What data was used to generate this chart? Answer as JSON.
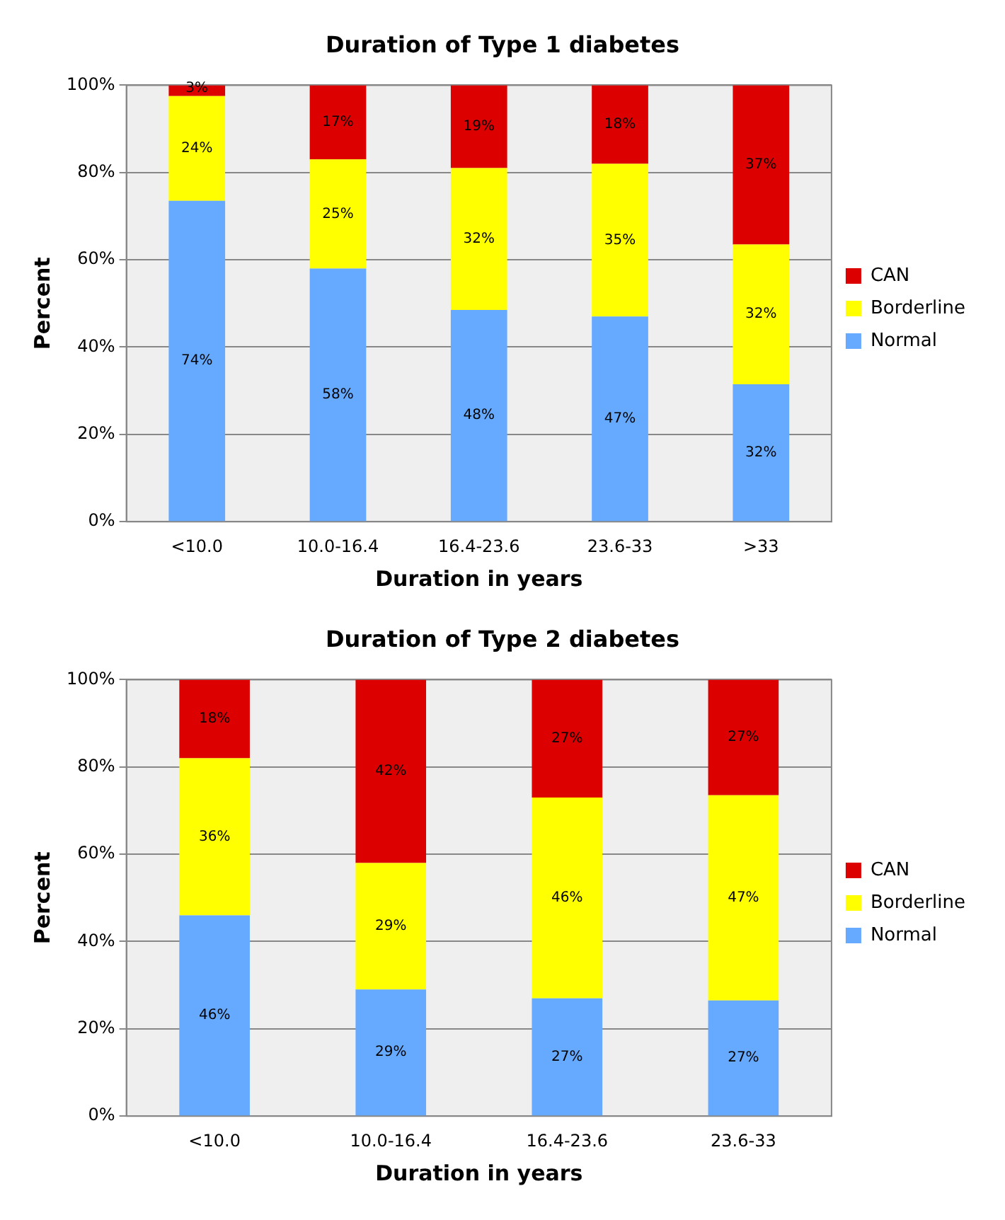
{
  "chart_data": [
    {
      "type": "bar",
      "title": "Duration of Type 1 diabetes",
      "xlabel": "Duration in years",
      "ylabel": "Percent",
      "stacked": true,
      "categories": [
        "<10.0",
        "10.0-16.4",
        "16.4-23.6",
        "23.6-33",
        ">33"
      ],
      "series": [
        {
          "name": "Normal",
          "color": "#66aaff",
          "values": [
            73.5,
            58,
            48.5,
            47,
            31.5
          ],
          "value_labels": [
            "74%",
            "58%",
            "48%",
            "47%",
            "32%"
          ]
        },
        {
          "name": "Borderline",
          "color": "#ffff00",
          "values": [
            24,
            25,
            32.5,
            35,
            32
          ],
          "value_labels": [
            "24%",
            "25%",
            "32%",
            "35%",
            "32%"
          ]
        },
        {
          "name": "CAN",
          "color": "#dd0000",
          "values": [
            2.5,
            17,
            19,
            18,
            36.5
          ],
          "value_labels": [
            "3%",
            "17%",
            "19%",
            "18%",
            "37%"
          ]
        }
      ],
      "ylim": [
        0,
        100
      ],
      "yticks": [
        {
          "value": 0,
          "label": "0%"
        },
        {
          "value": 20,
          "label": "20%"
        },
        {
          "value": 40,
          "label": "40%"
        },
        {
          "value": 60,
          "label": "60%"
        },
        {
          "value": 80,
          "label": "80%"
        },
        {
          "value": 100,
          "label": "100%"
        }
      ],
      "grid": "y",
      "legend": "right"
    },
    {
      "type": "bar",
      "title": "Duration of Type 2 diabetes",
      "xlabel": "Duration in years",
      "ylabel": "Percent",
      "stacked": true,
      "categories": [
        "<10.0",
        "10.0-16.4",
        "16.4-23.6",
        "23.6-33"
      ],
      "series": [
        {
          "name": "Normal",
          "color": "#66aaff",
          "values": [
            46,
            29,
            27,
            26.5
          ],
          "value_labels": [
            "46%",
            "29%",
            "27%",
            "27%"
          ]
        },
        {
          "name": "Borderline",
          "color": "#ffff00",
          "values": [
            36,
            29,
            46,
            47
          ],
          "value_labels": [
            "36%",
            "29%",
            "46%",
            "47%"
          ]
        },
        {
          "name": "CAN",
          "color": "#dd0000",
          "values": [
            18,
            42,
            27,
            26.5
          ],
          "value_labels": [
            "18%",
            "42%",
            "27%",
            "27%"
          ]
        }
      ],
      "ylim": [
        0,
        100
      ],
      "yticks": [
        {
          "value": 0,
          "label": "0%"
        },
        {
          "value": 20,
          "label": "20%"
        },
        {
          "value": 40,
          "label": "40%"
        },
        {
          "value": 60,
          "label": "60%"
        },
        {
          "value": 80,
          "label": "80%"
        },
        {
          "value": 100,
          "label": "100%"
        }
      ],
      "grid": "y",
      "legend": "right"
    }
  ]
}
